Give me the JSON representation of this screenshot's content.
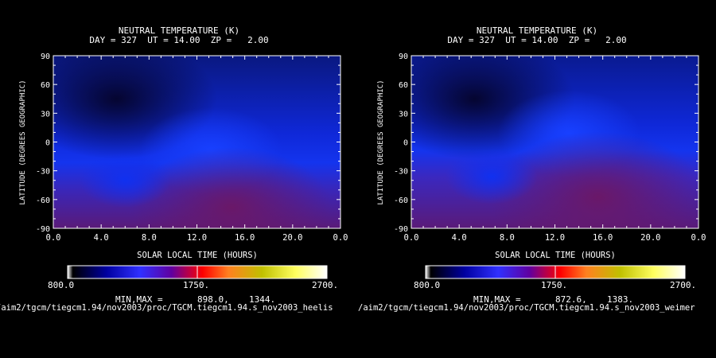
{
  "chart_data": [
    {
      "type": "heatmap",
      "title": "NEUTRAL TEMPERATURE (K)",
      "subtitle": "DAY = 327  UT = 14.00  ZP =   2.00",
      "xlabel": "SOLAR LOCAL TIME (HOURS)",
      "ylabel": "LATITUDE (DEGREES GEOGRAPHIC)",
      "x_ticks": [
        "0.0",
        "4.0",
        "8.0",
        "12.0",
        "16.0",
        "20.0",
        "0.0"
      ],
      "y_ticks": [
        "90",
        "60",
        "30",
        "0",
        "-30",
        "-60",
        "-90"
      ],
      "xlim": [
        0,
        24
      ],
      "ylim": [
        -90,
        90
      ],
      "colorbar": {
        "min_label": "800.0",
        "mid_label": "1750.",
        "max_label": "2700.",
        "range": [
          800,
          2700
        ]
      },
      "minmax_label": "MIN,MAX =",
      "min_value": "898.0,",
      "max_value": "1344.",
      "source_path": "/aim2/tgcm/tiegcm1.94/nov2003/proc/TGCM.tiegcm1.94.s_nov2003_heelis"
    },
    {
      "type": "heatmap",
      "title": "NEUTRAL TEMPERATURE (K)",
      "subtitle": "DAY = 327  UT = 14.00  ZP =   2.00",
      "xlabel": "SOLAR LOCAL TIME (HOURS)",
      "ylabel": "LATITUDE (DEGREES GEOGRAPHIC)",
      "x_ticks": [
        "0.0",
        "4.0",
        "8.0",
        "12.0",
        "16.0",
        "20.0",
        "0.0"
      ],
      "y_ticks": [
        "90",
        "60",
        "30",
        "0",
        "-30",
        "-60",
        "-90"
      ],
      "xlim": [
        0,
        24
      ],
      "ylim": [
        -90,
        90
      ],
      "colorbar": {
        "min_label": "800.0",
        "mid_label": "1750.",
        "max_label": "2700.",
        "range": [
          800,
          2700
        ]
      },
      "minmax_label": "MIN,MAX =",
      "min_value": "872.6,",
      "max_value": "1383.",
      "source_path": "/aim2/tgcm/tiegcm1.94/nov2003/proc/TGCM.tiegcm1.94.s_nov2003_weimer"
    }
  ],
  "colors": {
    "background": "#000000",
    "cold": "#0a0a50",
    "mid": "#1030ff",
    "warm": "#601a80"
  }
}
